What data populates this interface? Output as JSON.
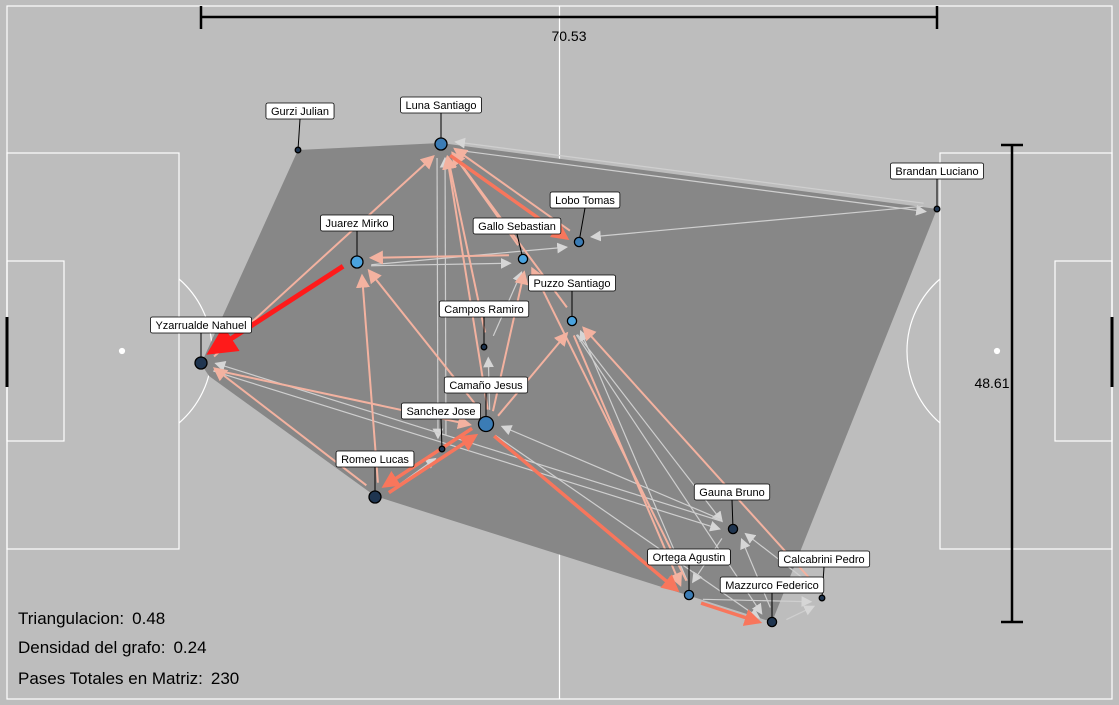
{
  "colors": {
    "background": "#bdbdbd",
    "pitch_lines": "#ffffff",
    "hull": "#878787",
    "node_dark": "#1f3550",
    "node_light": "#4aa3df",
    "edge_strong": "#ff1a1a",
    "edge_medium": "#f8765c",
    "edge_light": "#f3b2a0",
    "edge_faint": "#cfcfcf"
  },
  "dimensions": {
    "width_label": "70.53",
    "height_label": "48.61"
  },
  "stats": [
    {
      "label": "Triangulacion:",
      "value": "0.48"
    },
    {
      "label": "Densidad del grafo:",
      "value": "0.24"
    },
    {
      "label": "Pases Totales en Matriz:",
      "value": "230"
    }
  ],
  "players": [
    {
      "id": "gurzi",
      "name": "Gurzi Julian",
      "size": "small",
      "tone": "dark"
    },
    {
      "id": "luna",
      "name": "Luna Santiago",
      "size": "large",
      "tone": "mid"
    },
    {
      "id": "brandan",
      "name": "Brandan Luciano",
      "size": "small",
      "tone": "dark"
    },
    {
      "id": "lobo",
      "name": "Lobo Tomas",
      "size": "medium",
      "tone": "mid"
    },
    {
      "id": "juarez",
      "name": "Juarez Mirko",
      "size": "large",
      "tone": "light"
    },
    {
      "id": "gallo",
      "name": "Gallo Sebastian",
      "size": "medium",
      "tone": "light"
    },
    {
      "id": "puzzo",
      "name": "Puzzo Santiago",
      "size": "medium",
      "tone": "light"
    },
    {
      "id": "campos",
      "name": "Campos Ramiro",
      "size": "small",
      "tone": "dark"
    },
    {
      "id": "yzarrualde",
      "name": "Yzarrualde Nahuel",
      "size": "large",
      "tone": "dark"
    },
    {
      "id": "camano",
      "name": "Camaño Jesus",
      "size": "xlarge",
      "tone": "mid"
    },
    {
      "id": "sanchez",
      "name": "Sanchez Jose",
      "size": "small",
      "tone": "dark"
    },
    {
      "id": "romeo",
      "name": "Romeo Lucas",
      "size": "large",
      "tone": "dark"
    },
    {
      "id": "gauna",
      "name": "Gauna Bruno",
      "size": "medium",
      "tone": "dark"
    },
    {
      "id": "ortega",
      "name": "Ortega Agustin",
      "size": "medium",
      "tone": "mid"
    },
    {
      "id": "calcabrini",
      "name": "Calcabrini Pedro",
      "size": "small",
      "tone": "dark"
    },
    {
      "id": "mazzurco",
      "name": "Mazzurco Federico",
      "size": "medium",
      "tone": "dark"
    }
  ],
  "passes": [
    {
      "from": "juarez",
      "to": "yzarrualde",
      "strength": "strong"
    },
    {
      "from": "luna",
      "to": "lobo",
      "strength": "medium"
    },
    {
      "from": "camano",
      "to": "ortega",
      "strength": "medium"
    },
    {
      "from": "camano",
      "to": "romeo",
      "strength": "medium"
    },
    {
      "from": "romeo",
      "to": "camano",
      "strength": "medium"
    },
    {
      "from": "ortega",
      "to": "mazzurco",
      "strength": "medium"
    },
    {
      "from": "yzarrualde",
      "to": "luna",
      "strength": "light"
    },
    {
      "from": "romeo",
      "to": "yzarrualde",
      "strength": "light"
    },
    {
      "from": "romeo",
      "to": "juarez",
      "strength": "light"
    },
    {
      "from": "camano",
      "to": "juarez",
      "strength": "light"
    },
    {
      "from": "campos",
      "to": "luna",
      "strength": "light"
    },
    {
      "from": "camano",
      "to": "luna",
      "strength": "light"
    },
    {
      "from": "gallo",
      "to": "juarez",
      "strength": "light"
    },
    {
      "from": "gallo",
      "to": "luna",
      "strength": "light"
    },
    {
      "from": "lobo",
      "to": "luna",
      "strength": "light"
    },
    {
      "from": "puzzo",
      "to": "luna",
      "strength": "light"
    },
    {
      "from": "puzzo",
      "to": "ortega",
      "strength": "light"
    },
    {
      "from": "camano",
      "to": "puzzo",
      "strength": "light"
    },
    {
      "from": "camano",
      "to": "gallo",
      "strength": "light"
    },
    {
      "from": "ortega",
      "to": "gallo",
      "strength": "light"
    },
    {
      "from": "yzarrualde",
      "to": "camano",
      "strength": "light"
    },
    {
      "from": "calcabrini",
      "to": "puzzo",
      "strength": "light"
    },
    {
      "from": "brandan",
      "to": "luna",
      "strength": "faint"
    },
    {
      "from": "luna",
      "to": "brandan",
      "strength": "faint"
    },
    {
      "from": "juarez",
      "to": "gallo",
      "strength": "faint"
    },
    {
      "from": "puzzo",
      "to": "gauna",
      "strength": "faint"
    },
    {
      "from": "sanchez",
      "to": "luna",
      "strength": "faint"
    },
    {
      "from": "luna",
      "to": "sanchez",
      "strength": "faint"
    },
    {
      "from": "ortega",
      "to": "puzzo",
      "strength": "faint"
    },
    {
      "from": "gauna",
      "to": "ortega",
      "strength": "faint"
    },
    {
      "from": "mazzurco",
      "to": "gauna",
      "strength": "faint"
    },
    {
      "from": "calcabrini",
      "to": "gauna",
      "strength": "faint"
    },
    {
      "from": "brandan",
      "to": "lobo",
      "strength": "faint"
    },
    {
      "from": "yzarrualde",
      "to": "gauna",
      "strength": "faint"
    },
    {
      "from": "gauna",
      "to": "yzarrualde",
      "strength": "faint"
    },
    {
      "from": "juarez",
      "to": "lobo",
      "strength": "faint"
    },
    {
      "from": "campos",
      "to": "gallo",
      "strength": "faint"
    },
    {
      "from": "romeo",
      "to": "sanchez",
      "strength": "faint"
    },
    {
      "from": "camano",
      "to": "mazzurco",
      "strength": "faint"
    },
    {
      "from": "gauna",
      "to": "camano",
      "strength": "faint"
    },
    {
      "from": "puzzo",
      "to": "mazzurco",
      "strength": "faint"
    },
    {
      "from": "mazzurco",
      "to": "calcabrini",
      "strength": "faint"
    },
    {
      "from": "ortega",
      "to": "calcabrini",
      "strength": "faint"
    },
    {
      "from": "camano",
      "to": "campos",
      "strength": "faint"
    }
  ]
}
